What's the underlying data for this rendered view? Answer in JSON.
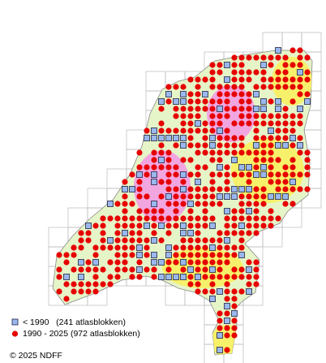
{
  "legend": [
    {
      "label": "< 1990   (241 atlasblokken)"
    },
    {
      "label": "1990 - 2025 (972 atlasblokken)"
    }
  ],
  "copyright": "© 2025 NDFF"
}
